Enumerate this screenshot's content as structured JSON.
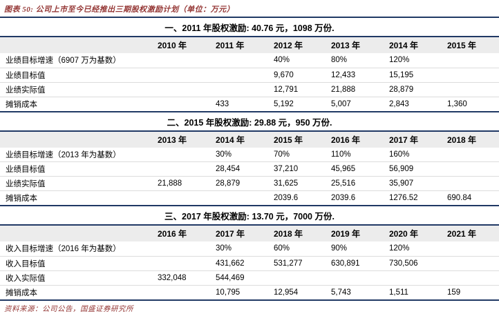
{
  "figure": {
    "title": "图表 50: 公司上市至今已经推出三期股权激励计划（单位：万元）",
    "source": "资料来源：公司公告，国盛证券研究所"
  },
  "colors": {
    "accent_navy": "#1f3864",
    "title_red": "#943634",
    "header_row_bg": "#ececec",
    "row_divider": "#dcdcdc"
  },
  "sections": [
    {
      "heading": "一、2011 年股权激励: 40.76 元，1098 万份.",
      "columns": [
        "2010 年",
        "2011 年",
        "2012 年",
        "2013 年",
        "2014 年",
        "2015 年"
      ],
      "rows": [
        {
          "label": "业绩目标增速（6907 万为基数）",
          "values": [
            "",
            "",
            "40%",
            "80%",
            "120%",
            ""
          ]
        },
        {
          "label": "业绩目标值",
          "values": [
            "",
            "",
            "9,670",
            "12,433",
            "15,195",
            ""
          ]
        },
        {
          "label": "业绩实际值",
          "values": [
            "",
            "",
            "12,791",
            "21,888",
            "28,879",
            ""
          ]
        },
        {
          "label": "摊销成本",
          "values": [
            "",
            "433",
            "5,192",
            "5,007",
            "2,843",
            "1,360"
          ]
        }
      ]
    },
    {
      "heading": "二、2015 年股权激励: 29.88 元，950 万份.",
      "columns": [
        "2013 年",
        "2014 年",
        "2015 年",
        "2016 年",
        "2017 年",
        "2018 年"
      ],
      "rows": [
        {
          "label": "业绩目标增速（2013 年为基数）",
          "values": [
            "",
            "30%",
            "70%",
            "110%",
            "160%",
            ""
          ]
        },
        {
          "label": "业绩目标值",
          "values": [
            "",
            "28,454",
            "37,210",
            "45,965",
            "56,909",
            ""
          ]
        },
        {
          "label": "业绩实际值",
          "values": [
            "21,888",
            "28,879",
            "31,625",
            "25,516",
            "35,907",
            ""
          ]
        },
        {
          "label": "摊销成本",
          "values": [
            "",
            "",
            "2039.6",
            "2039.6",
            "1276.52",
            "690.84"
          ]
        }
      ]
    },
    {
      "heading": "三、2017 年股权激励: 13.70 元，7000 万份.",
      "columns": [
        "2016 年",
        "2017 年",
        "2018 年",
        "2019 年",
        "2020 年",
        "2021 年"
      ],
      "rows": [
        {
          "label": "收入目标增速（2016 年为基数）",
          "values": [
            "",
            "30%",
            "60%",
            "90%",
            "120%",
            ""
          ]
        },
        {
          "label": "收入目标值",
          "values": [
            "",
            "431,662",
            "531,277",
            "630,891",
            "730,506",
            ""
          ]
        },
        {
          "label": "收入实际值",
          "values": [
            "332,048",
            "544,469",
            "",
            "",
            "",
            ""
          ]
        },
        {
          "label": "摊销成本",
          "values": [
            "",
            "10,795",
            "12,954",
            "5,743",
            "1,511",
            "159"
          ]
        }
      ]
    }
  ]
}
